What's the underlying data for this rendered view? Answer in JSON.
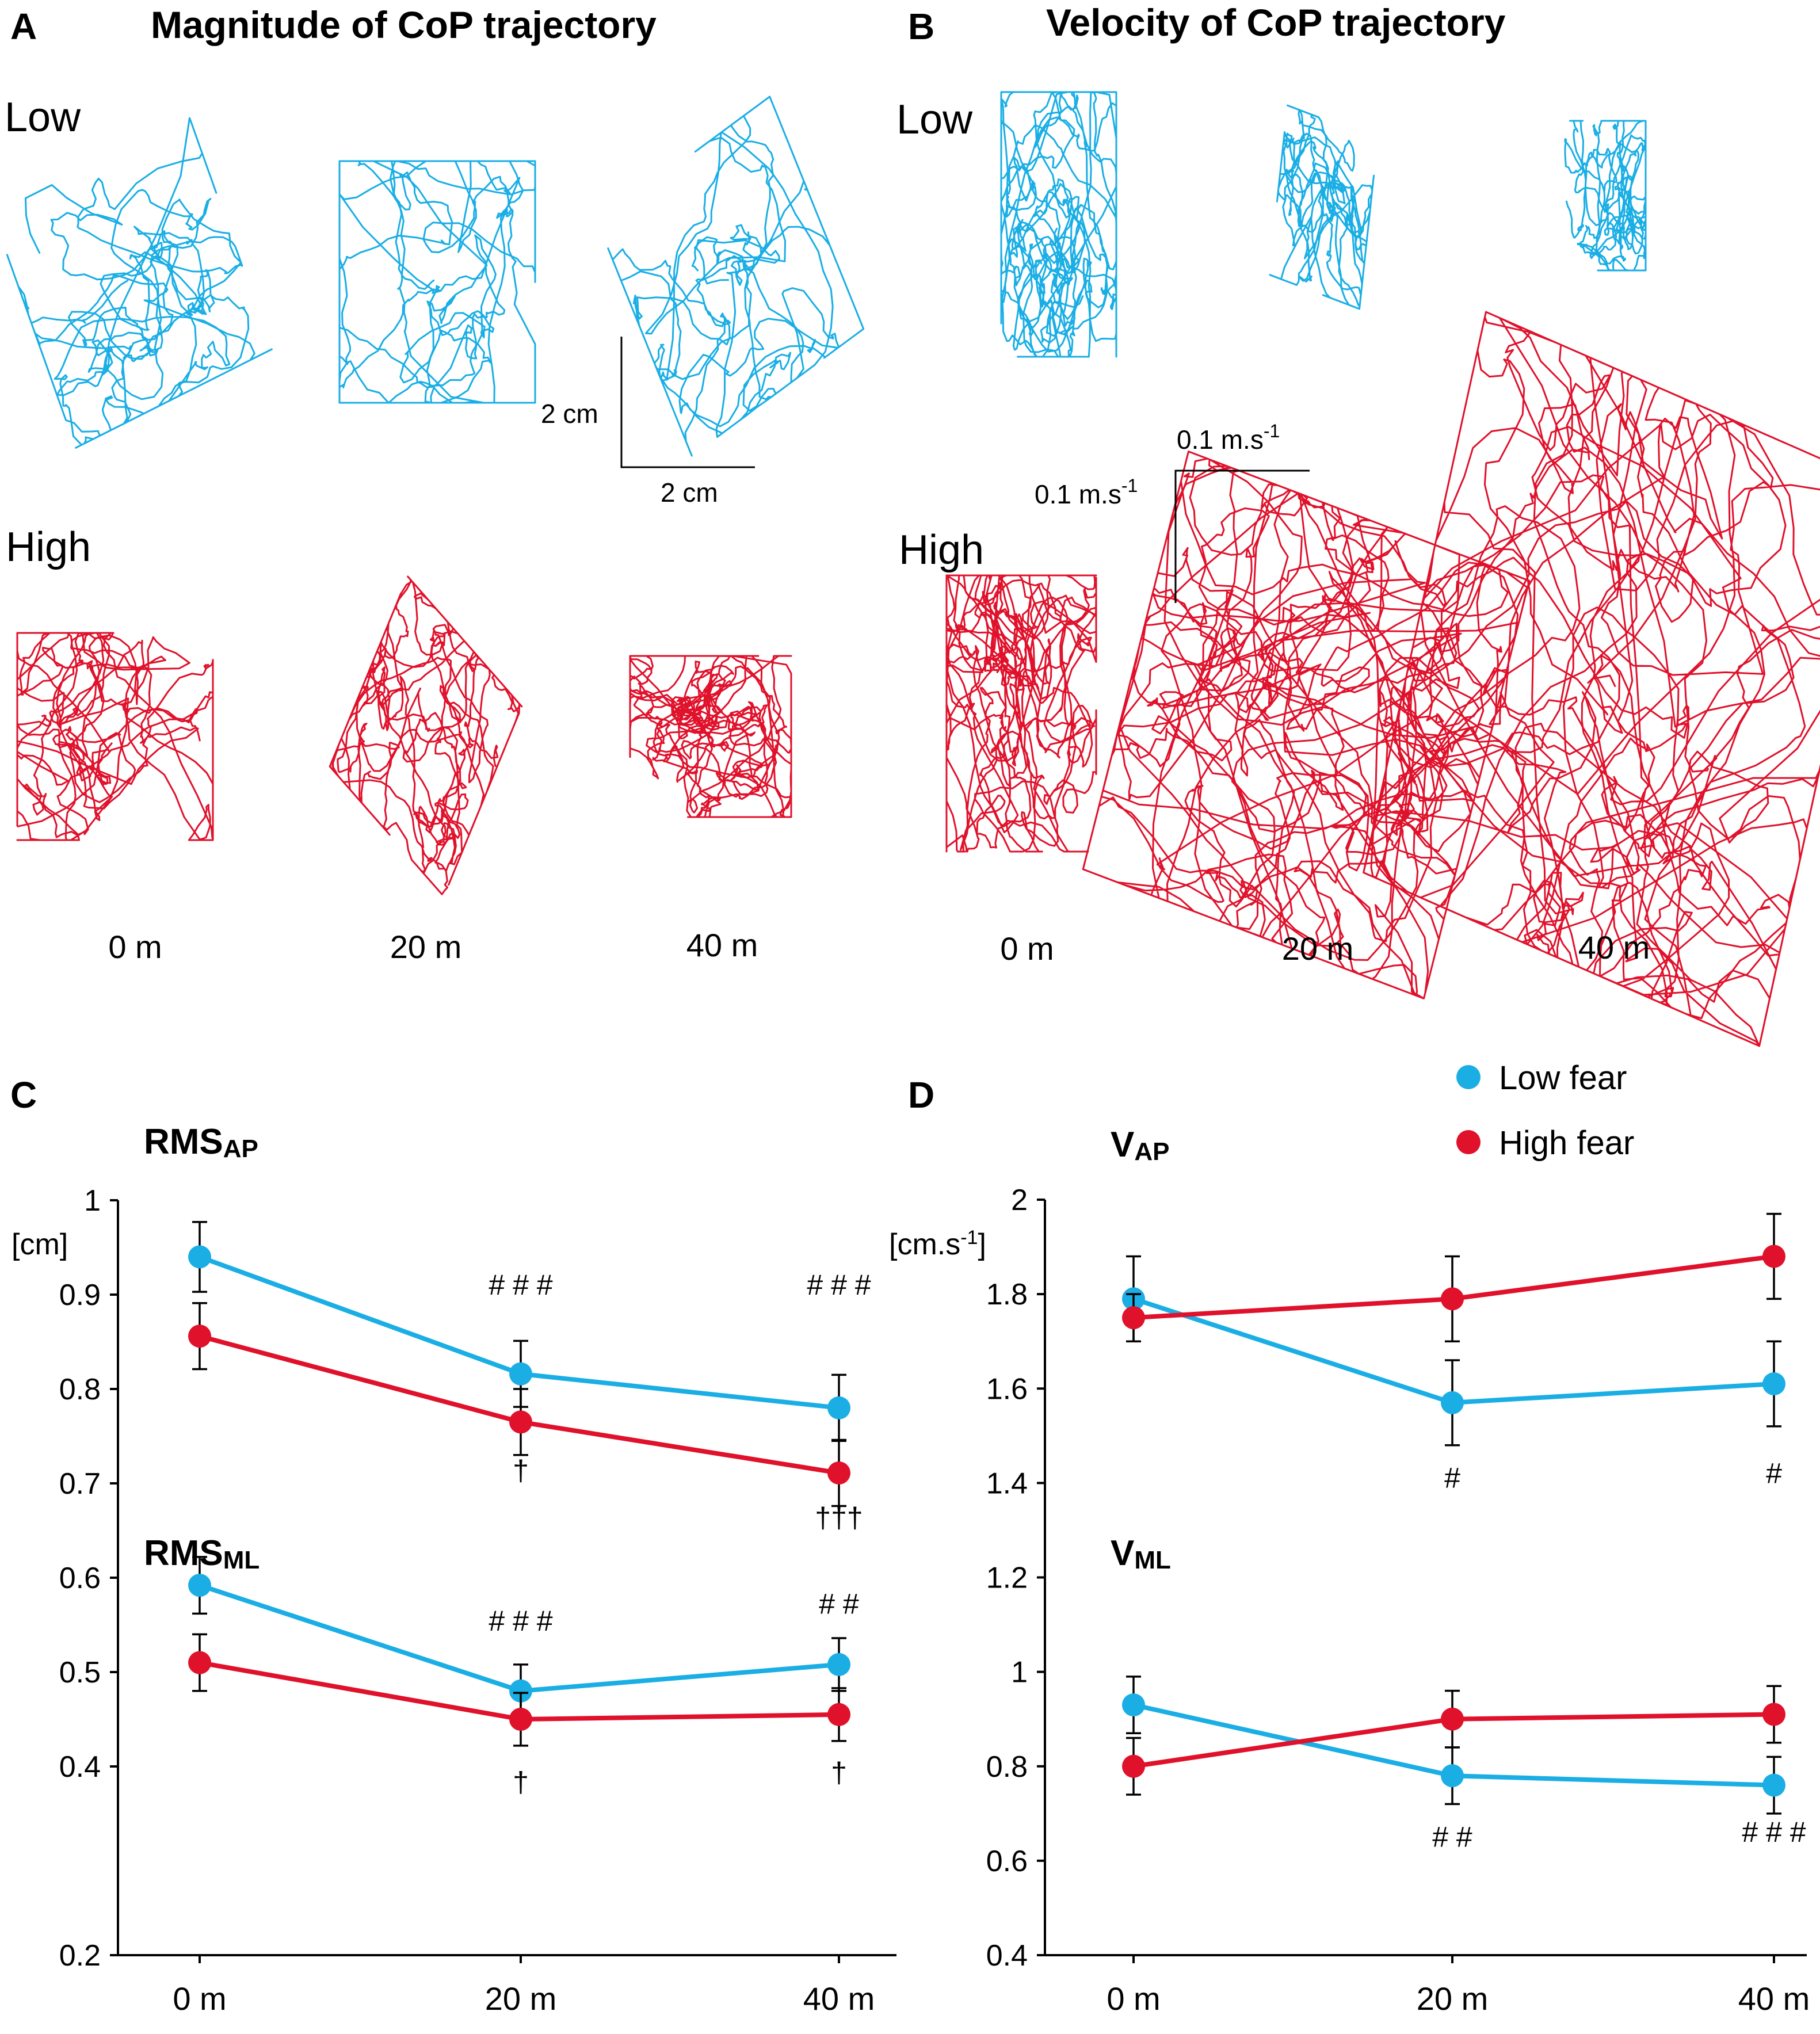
{
  "colors": {
    "low": "#1aaee5",
    "high": "#e0112b"
  },
  "panel_a": {
    "letter": "A",
    "title": "Magnitude of CoP trajectory",
    "row_low": "Low",
    "row_high": "High",
    "scale_label_v": "2 cm",
    "scale_label_h": "2 cm",
    "x_labels": [
      "0 m",
      "20 m",
      "40 m"
    ]
  },
  "panel_b": {
    "letter": "B",
    "title": "Velocity of CoP trajectory",
    "row_low": "Low",
    "row_high": "High",
    "scale_label_h": "0.1  m.s",
    "scale_label_v": "0.1  m.s",
    "scale_exp": "-1",
    "x_labels": [
      "0 m",
      "20 m",
      "40 m"
    ]
  },
  "legend": {
    "low": "Low  fear",
    "high": "High  fear"
  },
  "chart_data": [
    {
      "panel": "C",
      "type": "line",
      "categories": [
        "0 m",
        "20 m",
        "40 m"
      ],
      "ylim": [
        0.2,
        1.0
      ],
      "yticks": [
        "0.2",
        "0.4",
        "0.5",
        "0.6",
        "0.7",
        "0.8",
        "0.9",
        "1"
      ],
      "ytick_values": [
        0.2,
        0.4,
        0.5,
        0.6,
        0.7,
        0.8,
        0.9,
        1.0
      ],
      "ylabel": "[cm]",
      "groups": [
        {
          "title": "RMS",
          "subscript": "AP",
          "series": [
            {
              "name": "Low fear",
              "values": [
                0.94,
                0.816,
                0.78
              ],
              "err": [
                0.037,
                0.035,
                0.035
              ]
            },
            {
              "name": "High fear",
              "values": [
                0.856,
                0.765,
                0.711
              ],
              "err": [
                0.035,
                0.035,
                0.035
              ]
            }
          ],
          "annotations": [
            {
              "cat": 1,
              "text": "# # #",
              "y": 0.9
            },
            {
              "cat": 2,
              "text": "# # #",
              "y": 0.9
            },
            {
              "cat": 1,
              "text": "†",
              "y": 0.703
            },
            {
              "cat": 2,
              "text": "†††",
              "y": 0.653
            }
          ]
        },
        {
          "title": "RMS",
          "subscript": "ML",
          "series": [
            {
              "name": "Low fear",
              "values": [
                0.592,
                0.48,
                0.508
              ],
              "err": [
                0.03,
                0.028,
                0.028
              ]
            },
            {
              "name": "High fear",
              "values": [
                0.51,
                0.45,
                0.455
              ],
              "err": [
                0.03,
                0.028,
                0.028
              ]
            }
          ],
          "annotations": [
            {
              "cat": 1,
              "text": "# # #",
              "y": 0.544
            },
            {
              "cat": 2,
              "text": "# #",
              "y": 0.562
            },
            {
              "cat": 1,
              "text": "†",
              "y": 0.373
            },
            {
              "cat": 2,
              "text": "†",
              "y": 0.383
            }
          ]
        }
      ]
    },
    {
      "panel": "D",
      "type": "line",
      "categories": [
        "0 m",
        "20 m",
        "40 m"
      ],
      "ylim": [
        0.4,
        2.0
      ],
      "yticks": [
        "0.4",
        "0.6",
        "0.8",
        "1",
        "1.2",
        "1.4",
        "1.6",
        "1.8",
        "2"
      ],
      "ytick_values": [
        0.4,
        0.6,
        0.8,
        1.0,
        1.2,
        1.4,
        1.6,
        1.8,
        2.0
      ],
      "ylabel": "[cm.s-1]",
      "groups": [
        {
          "title": "V",
          "subscript": "AP",
          "series": [
            {
              "name": "Low fear",
              "values": [
                1.79,
                1.57,
                1.61
              ],
              "err": [
                0.09,
                0.09,
                0.09
              ]
            },
            {
              "name": "High fear",
              "values": [
                1.75,
                1.79,
                1.88
              ],
              "err": [
                0.05,
                0.09,
                0.09
              ]
            }
          ],
          "annotations": [
            {
              "cat": 1,
              "text": "#",
              "y": 1.39
            },
            {
              "cat": 2,
              "text": "#",
              "y": 1.4
            }
          ]
        },
        {
          "title": "V",
          "subscript": "ML",
          "series": [
            {
              "name": "Low fear",
              "values": [
                0.93,
                0.78,
                0.76
              ],
              "err": [
                0.06,
                0.06,
                0.06
              ]
            },
            {
              "name": "High fear",
              "values": [
                0.8,
                0.9,
                0.91
              ],
              "err": [
                0.06,
                0.06,
                0.06
              ]
            }
          ],
          "annotations": [
            {
              "cat": 1,
              "text": "# #",
              "y": 0.63
            },
            {
              "cat": 2,
              "text": "# # #",
              "y": 0.64
            }
          ]
        }
      ]
    }
  ]
}
